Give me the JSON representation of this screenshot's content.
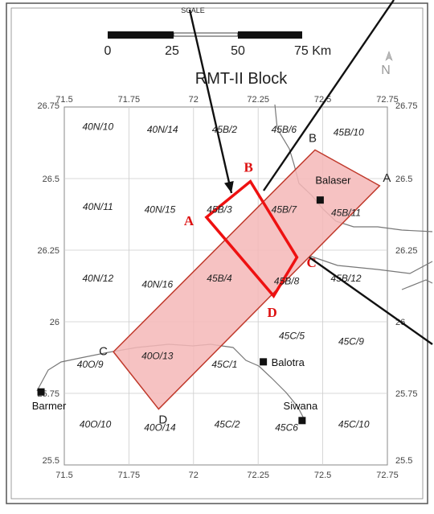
{
  "scale": {
    "label": "SCALE",
    "ticks": [
      "0",
      "25",
      "50",
      "75 Km"
    ]
  },
  "north_label": "N",
  "title": "RMT-II Block",
  "lon_ticks": [
    "71.5",
    "71.75",
    "72",
    "72.25",
    "72.5",
    "72.75"
  ],
  "lat_ticks": [
    "26.75",
    "26.5",
    "26.25",
    "26",
    "25.75",
    "25.5"
  ],
  "sheets": [
    {
      "label": "40N/10",
      "lon": 71.63,
      "lat": 26.67
    },
    {
      "label": "40N/14",
      "lon": 71.88,
      "lat": 26.66
    },
    {
      "label": "45B/2",
      "lon": 72.12,
      "lat": 26.66
    },
    {
      "label": "45B/6",
      "lon": 72.35,
      "lat": 26.66
    },
    {
      "label": "45B/10",
      "lon": 72.6,
      "lat": 26.65
    },
    {
      "label": "40N/11",
      "lon": 71.63,
      "lat": 26.39
    },
    {
      "label": "40N/15",
      "lon": 71.87,
      "lat": 26.38
    },
    {
      "label": "45B/3",
      "lon": 72.1,
      "lat": 26.38
    },
    {
      "label": "45B/7",
      "lon": 72.35,
      "lat": 26.38
    },
    {
      "label": "45B/11",
      "lon": 72.59,
      "lat": 26.37
    },
    {
      "label": "40N/12",
      "lon": 71.63,
      "lat": 26.14
    },
    {
      "label": "40N/16",
      "lon": 71.86,
      "lat": 26.12
    },
    {
      "label": "45B/4",
      "lon": 72.1,
      "lat": 26.14
    },
    {
      "label": "45B/8",
      "lon": 72.36,
      "lat": 26.13
    },
    {
      "label": "45B/12",
      "lon": 72.59,
      "lat": 26.14
    },
    {
      "label": "45C/5",
      "lon": 72.38,
      "lat": 25.94
    },
    {
      "label": "45C/9",
      "lon": 72.61,
      "lat": 25.92
    },
    {
      "label": "40O/9",
      "lon": 71.6,
      "lat": 25.84
    },
    {
      "label": "40O/13",
      "lon": 71.86,
      "lat": 25.87
    },
    {
      "label": "45C/1",
      "lon": 72.12,
      "lat": 25.84
    },
    {
      "label": "40O/10",
      "lon": 71.62,
      "lat": 25.63
    },
    {
      "label": "40O/14",
      "lon": 71.87,
      "lat": 25.62
    },
    {
      "label": "45C/2",
      "lon": 72.13,
      "lat": 25.63
    },
    {
      "label": "45C6",
      "lon": 72.36,
      "lat": 25.62
    },
    {
      "label": "45C/10",
      "lon": 72.62,
      "lat": 25.63
    }
  ],
  "towns": [
    {
      "name": "Balaser",
      "lon": 72.49,
      "lat": 26.425
    },
    {
      "name": "Balotra",
      "lon": 72.27,
      "lat": 25.86
    },
    {
      "name": "Siwana",
      "lon": 72.42,
      "lat": 25.655
    },
    {
      "name": "Barmer",
      "lon": 71.41,
      "lat": 25.755
    }
  ],
  "block_corners_black": [
    {
      "label": "A",
      "lon": 72.72,
      "lat": 26.475
    },
    {
      "label": "B",
      "lon": 72.47,
      "lat": 26.6
    },
    {
      "label": "C",
      "lon": 71.69,
      "lat": 25.895
    },
    {
      "label": "D",
      "lon": 71.865,
      "lat": 25.695
    }
  ],
  "sub_block_corners_red": [
    {
      "label": "A",
      "lon": 72.05,
      "lat": 26.365
    },
    {
      "label": "B",
      "lon": 72.22,
      "lat": 26.49
    },
    {
      "label": "C",
      "lon": 72.4,
      "lat": 26.225
    },
    {
      "label": "D",
      "lon": 72.31,
      "lat": 26.09
    }
  ],
  "colors": {
    "block_fill": "#f5b7b7",
    "block_stroke": "#c0392b",
    "sub_block_stroke": "#ee1111",
    "corner_label_red": "#dd1111",
    "grid": "#cccccc",
    "roads": "#777777"
  }
}
